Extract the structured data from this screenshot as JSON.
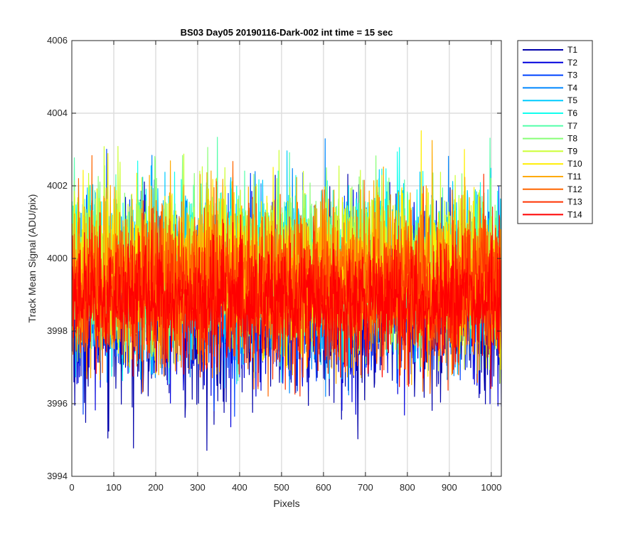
{
  "chart_data": {
    "type": "line",
    "title": "BS03 Day05 20190116-Dark-002 int time = 15 sec",
    "xlabel": "Pixels",
    "ylabel": "Track Mean Signal (ADU/pix)",
    "xlim": [
      0,
      1024
    ],
    "ylim": [
      3994,
      4006
    ],
    "xticks": [
      0,
      100,
      200,
      300,
      400,
      500,
      600,
      700,
      800,
      900,
      1000
    ],
    "yticks": [
      3994,
      3996,
      3998,
      4000,
      4002,
      4004,
      4006
    ],
    "xtick_labels": [
      "0",
      "100",
      "200",
      "300",
      "400",
      "500",
      "600",
      "700",
      "800",
      "900",
      "1000"
    ],
    "ytick_labels": [
      "3994",
      "3996",
      "3998",
      "4000",
      "4002",
      "4004",
      "4006"
    ],
    "grid": true,
    "legend_position": "outside-top-right",
    "series": [
      {
        "name": "T1",
        "color": "#0000aa",
        "mean": 3998.6,
        "spread": 2.0,
        "min": 3994.5,
        "max": 4003.0
      },
      {
        "name": "T2",
        "color": "#0000dd",
        "mean": 3998.8,
        "spread": 1.8,
        "min": 3995.2,
        "max": 4003.0
      },
      {
        "name": "T3",
        "color": "#0044ff",
        "mean": 3999.0,
        "spread": 1.7,
        "min": 3995.5,
        "max": 4003.2
      },
      {
        "name": "T4",
        "color": "#0088ff",
        "mean": 3999.3,
        "spread": 1.7,
        "min": 3996.0,
        "max": 4003.5
      },
      {
        "name": "T5",
        "color": "#00ccff",
        "mean": 3999.6,
        "spread": 1.8,
        "min": 3996.5,
        "max": 4004.0
      },
      {
        "name": "T6",
        "color": "#11ffee",
        "mean": 3999.8,
        "spread": 1.7,
        "min": 3996.6,
        "max": 4003.6
      },
      {
        "name": "T7",
        "color": "#55ffaa",
        "mean": 3999.8,
        "spread": 1.7,
        "min": 3996.5,
        "max": 4003.4
      },
      {
        "name": "T8",
        "color": "#88ff77",
        "mean": 3999.7,
        "spread": 1.7,
        "min": 3995.4,
        "max": 4003.5
      },
      {
        "name": "T9",
        "color": "#ccff33",
        "mean": 3999.7,
        "spread": 1.7,
        "min": 3996.5,
        "max": 4004.2
      },
      {
        "name": "T10",
        "color": "#ffee00",
        "mean": 3999.6,
        "spread": 1.7,
        "min": 3996.6,
        "max": 4003.6
      },
      {
        "name": "T11",
        "color": "#ffaa00",
        "mean": 3999.5,
        "spread": 1.8,
        "min": 3996.5,
        "max": 4004.0
      },
      {
        "name": "T12",
        "color": "#ff6600",
        "mean": 3999.3,
        "spread": 1.7,
        "min": 3996.2,
        "max": 4003.5
      },
      {
        "name": "T13",
        "color": "#ff3300",
        "mean": 3999.0,
        "spread": 1.6,
        "min": 3995.8,
        "max": 4003.0
      },
      {
        "name": "T14",
        "color": "#ff0000",
        "mean": 3998.8,
        "spread": 1.3,
        "min": 3994.3,
        "max": 4002.5
      }
    ]
  }
}
